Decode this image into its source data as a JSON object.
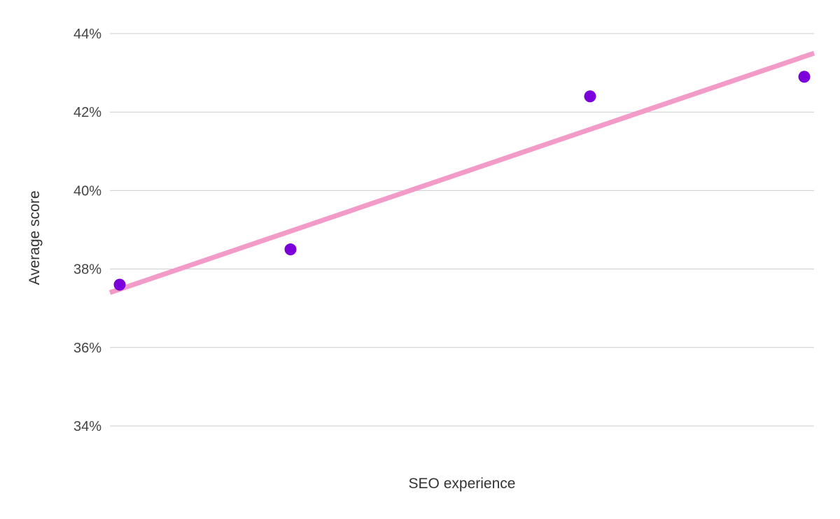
{
  "chart_data": {
    "type": "scatter",
    "title": "",
    "xlabel": "SEO experience",
    "ylabel": "Average score",
    "y_unit": "%",
    "ylim": [
      34,
      44
    ],
    "y_ticks": [
      34,
      36,
      38,
      40,
      42,
      44
    ],
    "y_tick_labels": [
      "34%",
      "36%",
      "38%",
      "40%",
      "42%",
      "44%"
    ],
    "grid": true,
    "legend": "none",
    "points": [
      {
        "x": 1,
        "y": 37.6
      },
      {
        "x": 2,
        "y": 38.5
      },
      {
        "x": 3,
        "y": 42.4
      },
      {
        "x": 4,
        "y": 42.9
      }
    ],
    "trendline": {
      "type": "linear",
      "start_y": 37.4,
      "end_y": 43.5
    },
    "colors": {
      "points": "#7b00d9",
      "trendline": "#f29bc9",
      "grid": "#cccccc"
    }
  }
}
